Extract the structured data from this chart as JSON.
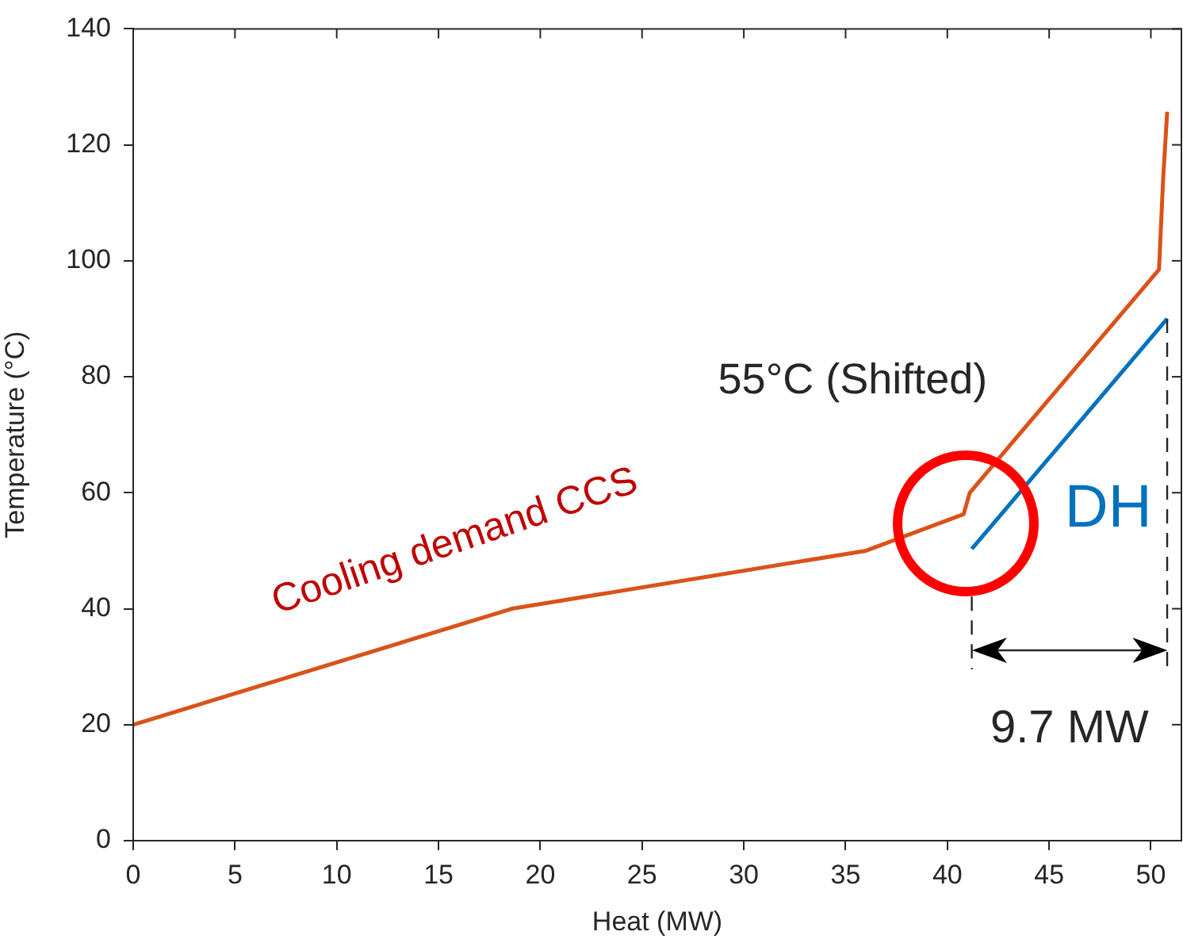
{
  "chart_data": {
    "type": "line",
    "xlabel": "Heat (MW)",
    "ylabel": "Temperature (°C)",
    "xlim": [
      0,
      51.5
    ],
    "xticks": [
      0,
      5,
      10,
      15,
      20,
      25,
      30,
      35,
      40,
      45,
      50
    ],
    "ylim": [
      0,
      140
    ],
    "yticks": [
      0,
      20,
      40,
      60,
      80,
      100,
      120,
      140
    ],
    "grid": false,
    "legend": false,
    "marker": "none",
    "series": [
      {
        "name": "Cooling demand CCS",
        "color": "#d95319",
        "x": [
          0,
          18.6,
          36,
          40.8,
          41.1,
          50.4,
          50.6,
          50.8
        ],
        "values": [
          20,
          40,
          50,
          56.3,
          60,
          98.5,
          114,
          125.7
        ]
      },
      {
        "name": "DH",
        "color": "#0072bd",
        "x": [
          41.2,
          50.8
        ],
        "values": [
          50.3,
          90
        ]
      }
    ],
    "annotations": [
      "55°C (Shifted)",
      {
        "text": "9.7 MW",
        "x": 50.8,
        "y": 90
      }
    ]
  }
}
